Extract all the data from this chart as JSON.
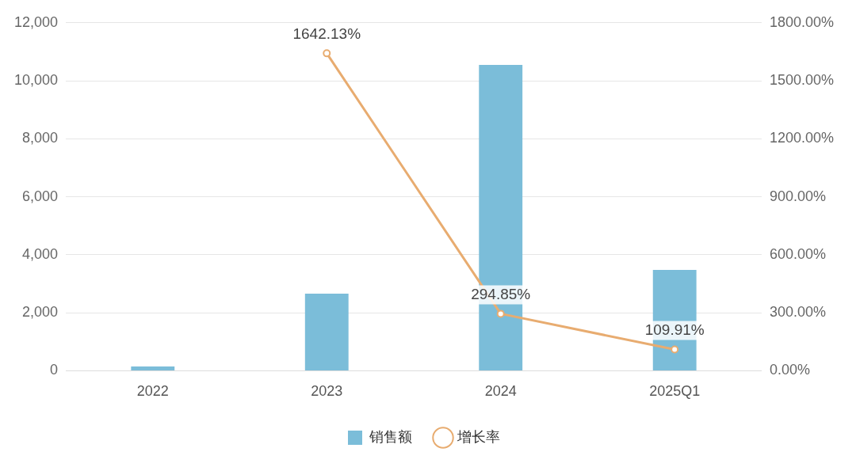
{
  "chart_data": {
    "type": "bar",
    "categories": [
      "2022",
      "2023",
      "2024",
      "2025Q1"
    ],
    "series": [
      {
        "name": "销售额",
        "color": "#7bbdd9",
        "values": [
          150,
          2660,
          10550,
          3480
        ]
      },
      {
        "name": "增长率",
        "type": "line",
        "axis": "y2",
        "color": "#e8ac70",
        "values": [
          null,
          1642.13,
          294.85,
          109.91
        ],
        "value_labels": [
          null,
          "1642.13%",
          "294.85%",
          "109.91%"
        ]
      }
    ],
    "ylim": [
      0,
      12000
    ],
    "yticks": [
      0,
      {
        "value": 2000,
        "label": "2,000"
      },
      {
        "value": 4000,
        "label": "4,000"
      },
      {
        "value": 6000,
        "label": "6,000"
      },
      {
        "value": 8000,
        "label": "8,000"
      },
      {
        "value": 10000,
        "label": "10,000"
      },
      {
        "value": 12000,
        "label": "12,000"
      }
    ],
    "y2lim": [
      0,
      1800
    ],
    "y2ticks": [
      {
        "value": 0,
        "label": "0.00%"
      },
      {
        "value": 300,
        "label": "300.00%"
      },
      {
        "value": 600,
        "label": "600.00%"
      },
      {
        "value": 900,
        "label": "900.00%"
      },
      {
        "value": 1200,
        "label": "1200.00%"
      },
      {
        "value": 1500,
        "label": "1500.00%"
      },
      {
        "value": 1800,
        "label": "1800.00%"
      }
    ],
    "grid": "y",
    "legend": "bottom",
    "marker": "circle"
  }
}
